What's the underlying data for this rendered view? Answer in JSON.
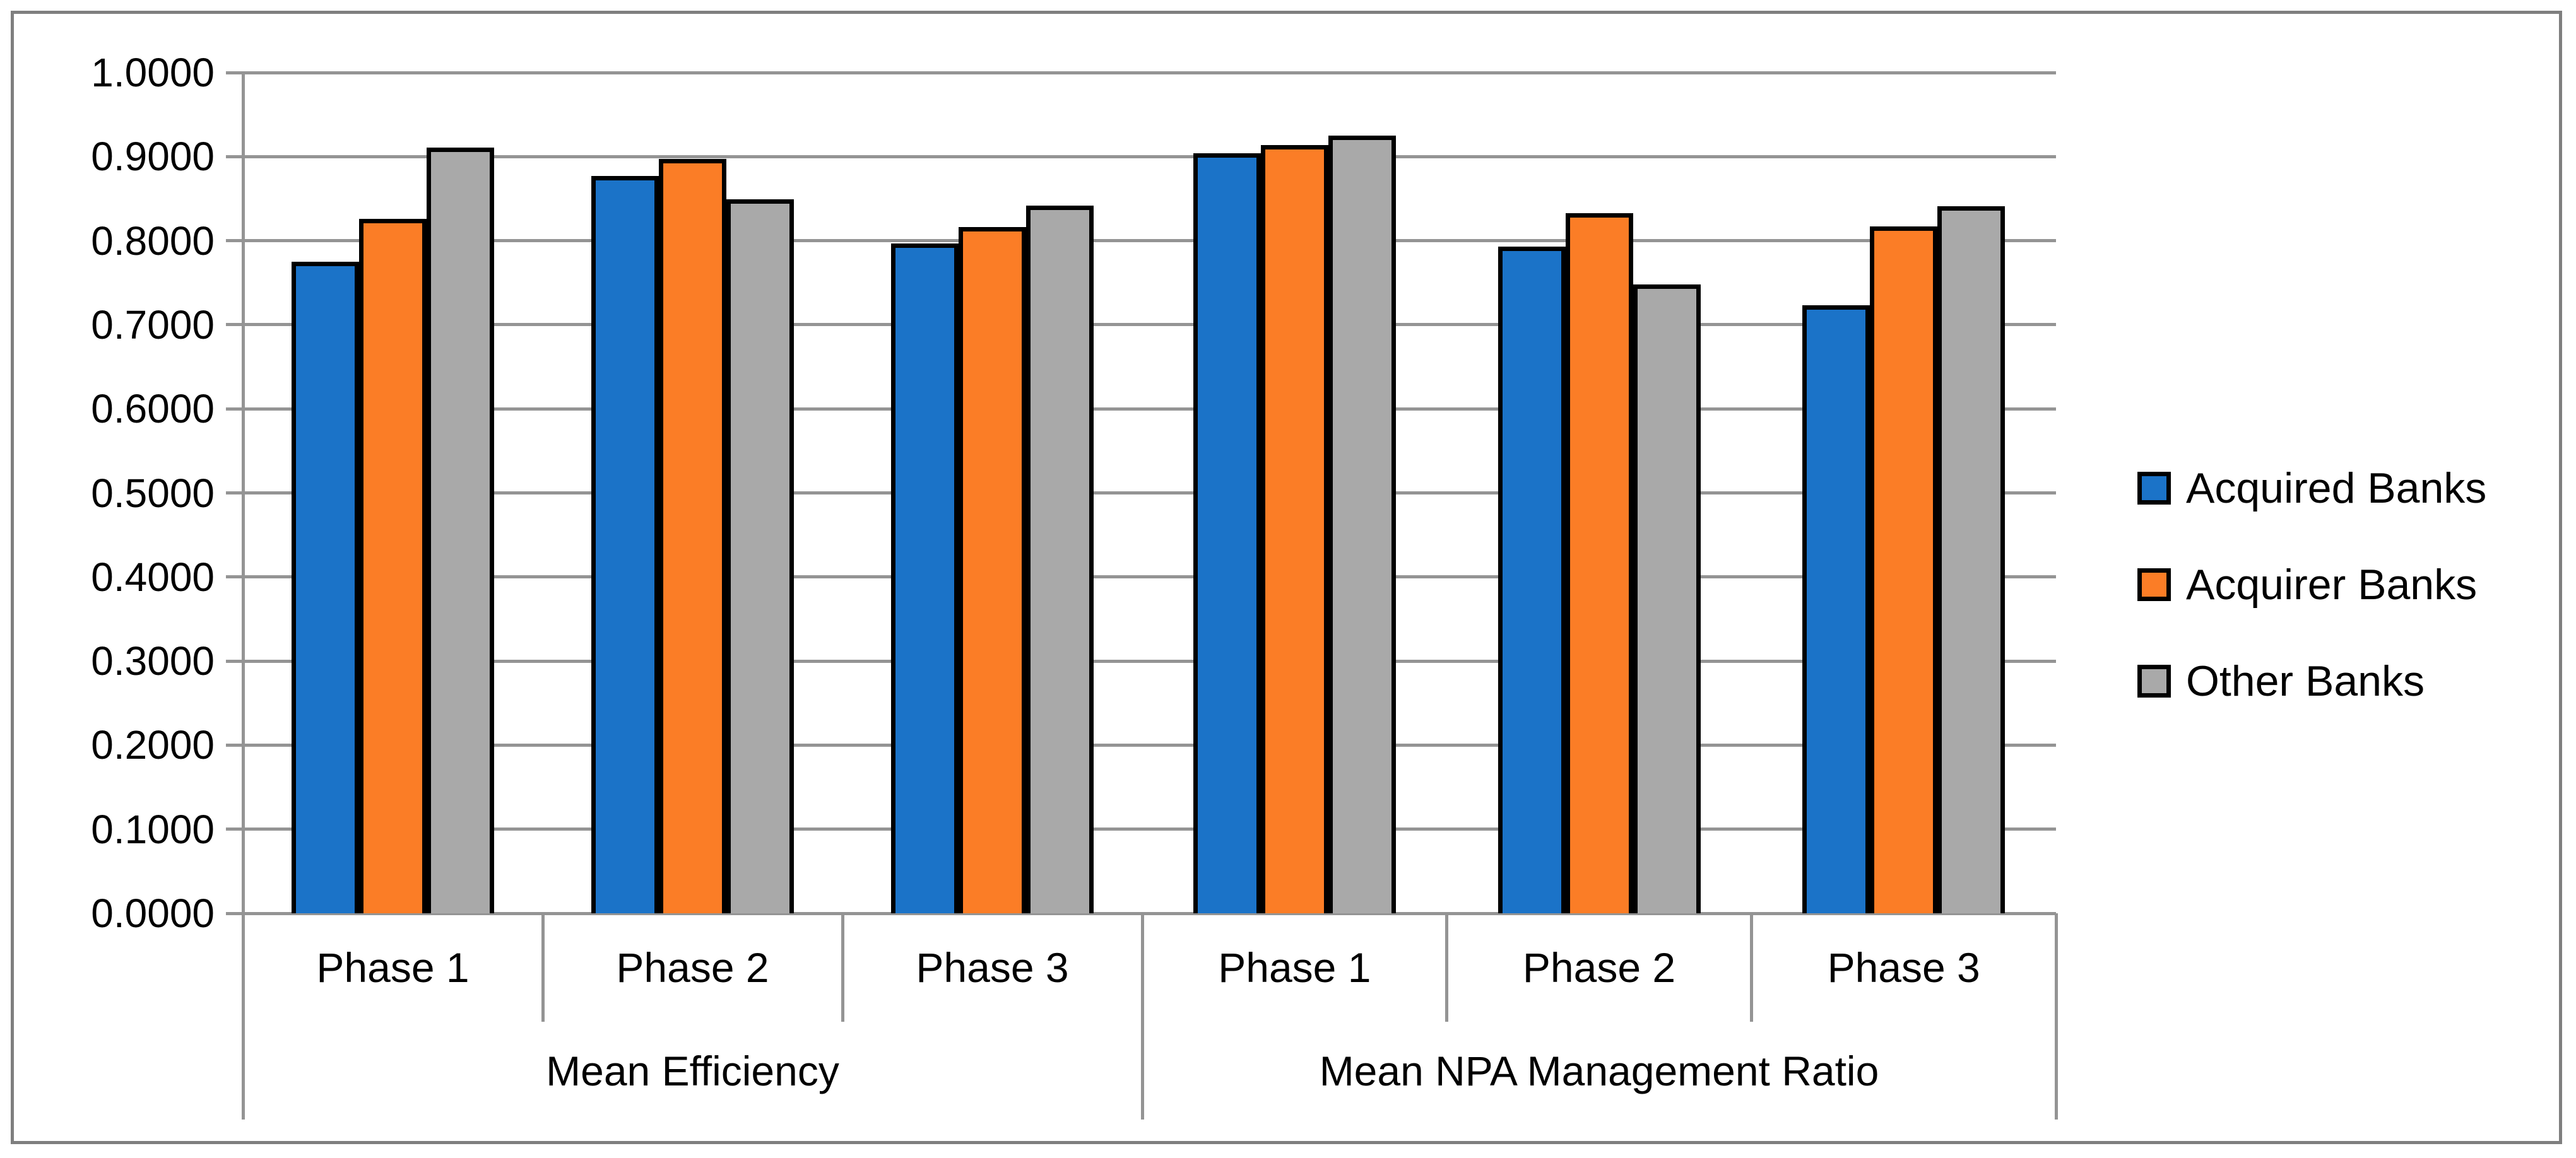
{
  "figure": {
    "background": "#ffffff",
    "frame_color": "#7f7f7f",
    "gridline_color": "#949494",
    "bar_border_color": "#000000"
  },
  "chart_data": {
    "type": "bar",
    "title": "",
    "grid": true,
    "legend_position": "right",
    "y_axis": {
      "min": 0,
      "max": 1,
      "tick_step": 0.1,
      "tick_labels": [
        "0.0000",
        "0.1000",
        "0.2000",
        "0.3000",
        "0.4000",
        "0.5000",
        "0.6000",
        "0.7000",
        "0.8000",
        "0.9000",
        "1.0000"
      ]
    },
    "x_axis": {
      "groups": [
        {
          "label": "Mean Efficiency",
          "categories": [
            "Phase 1",
            "Phase 2",
            "Phase 3"
          ]
        },
        {
          "label": "Mean NPA Management Ratio",
          "categories": [
            "Phase 1",
            "Phase 2",
            "Phase 3"
          ]
        }
      ]
    },
    "series": [
      {
        "name": "Acquired Banks",
        "color": "#1b73c8",
        "values": [
          [
            0.775,
            0.877,
            0.797
          ],
          [
            0.904,
            0.793,
            0.723
          ]
        ]
      },
      {
        "name": "Acquirer Banks",
        "color": "#fb7d26",
        "values": [
          [
            0.826,
            0.897,
            0.816
          ],
          [
            0.914,
            0.833,
            0.817
          ]
        ]
      },
      {
        "name": "Other Banks",
        "color": "#a9a9a9",
        "values": [
          [
            0.911,
            0.849,
            0.842
          ],
          [
            0.925,
            0.748,
            0.841
          ]
        ]
      }
    ]
  }
}
